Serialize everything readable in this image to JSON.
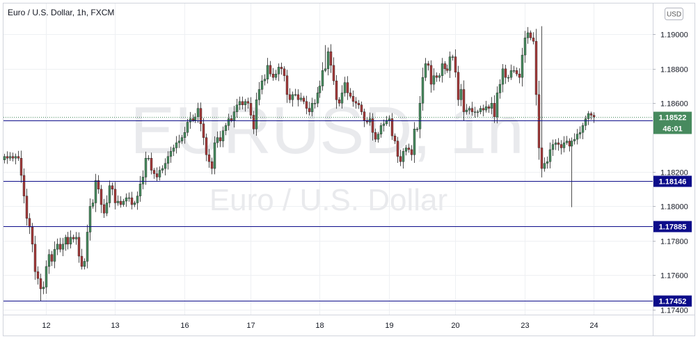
{
  "chart_data": {
    "type": "candlestick",
    "title": "Euro / U.S. Dollar, 1h, FXCM",
    "watermark_symbol": "EURUSD, 1h",
    "watermark_name": "Euro / U.S. Dollar",
    "currency_button": "USD",
    "ylim": [
      1.1737,
      1.1918
    ],
    "y_ticks": [
      1.19,
      1.188,
      1.186,
      1.182,
      1.18,
      1.178,
      1.176,
      1.174
    ],
    "y_tick_labels": [
      "1.19000",
      "1.18800",
      "1.18600",
      "1.18200",
      "1.18000",
      "1.17800",
      "1.17600",
      "1.17400"
    ],
    "x_ticks": [
      {
        "label": "12",
        "bar": 15
      },
      {
        "label": "13",
        "bar": 40
      },
      {
        "label": "16",
        "bar": 65
      },
      {
        "label": "17",
        "bar": 89
      },
      {
        "label": "18",
        "bar": 114
      },
      {
        "label": "19",
        "bar": 139
      },
      {
        "label": "20",
        "bar": 163
      },
      {
        "label": "23",
        "bar": 188
      },
      {
        "label": "24",
        "bar": 213
      }
    ],
    "horizontal_lines": [
      {
        "value": 1.185,
        "label": "1.18500"
      },
      {
        "value": 1.18146,
        "label": "1.18146"
      },
      {
        "value": 1.17885,
        "label": "1.17885"
      },
      {
        "value": 1.17452,
        "label": "1.17452"
      }
    ],
    "last_price": {
      "value": 1.18522,
      "label": "1.18522",
      "countdown": "46:01"
    },
    "colors": {
      "up": "#478a5e",
      "down": "#a33a3a",
      "wick": "#4d4d4d",
      "line": "#0c0c8a",
      "tag": "#0c0c8a",
      "last": "#478a5e"
    },
    "close_values": [
      1.1829,
      1.1828,
      1.1829,
      1.1828,
      1.1829,
      1.1828,
      1.1818,
      1.1806,
      1.1793,
      1.1788,
      1.1778,
      1.1762,
      1.1758,
      1.1752,
      1.1753,
      1.1765,
      1.1772,
      1.1768,
      1.1775,
      1.1778,
      1.1775,
      1.1778,
      1.1782,
      1.1778,
      1.1782,
      1.1781,
      1.1782,
      1.1771,
      1.1765,
      1.1768,
      1.1785,
      1.18,
      1.1802,
      1.1815,
      1.181,
      1.1801,
      1.1796,
      1.1802,
      1.1812,
      1.181,
      1.1802,
      1.1803,
      1.1801,
      1.1803,
      1.1805,
      1.1805,
      1.1801,
      1.1802,
      1.1806,
      1.1813,
      1.1817,
      1.1828,
      1.1828,
      1.1821,
      1.1819,
      1.1817,
      1.1821,
      1.1822,
      1.1825,
      1.1829,
      1.1832,
      1.1834,
      1.1837,
      1.1838,
      1.184,
      1.1843,
      1.1849,
      1.1851,
      1.185,
      1.1852,
      1.1857,
      1.1848,
      1.184,
      1.183,
      1.1826,
      1.1822,
      1.1837,
      1.184,
      1.1838,
      1.1844,
      1.1847,
      1.1851,
      1.185,
      1.1855,
      1.1859,
      1.1861,
      1.1859,
      1.1861,
      1.186,
      1.1853,
      1.1845,
      1.1862,
      1.1868,
      1.1873,
      1.1874,
      1.1882,
      1.1877,
      1.1875,
      1.1877,
      1.1881,
      1.188,
      1.1876,
      1.1865,
      1.1862,
      1.1865,
      1.1865,
      1.1862,
      1.1863,
      1.1861,
      1.1857,
      1.1855,
      1.186,
      1.186,
      1.1866,
      1.187,
      1.1879,
      1.188,
      1.189,
      1.1882,
      1.1873,
      1.1862,
      1.186,
      1.1866,
      1.1872,
      1.1866,
      1.1864,
      1.1861,
      1.186,
      1.1859,
      1.1855,
      1.185,
      1.1849,
      1.1851,
      1.1843,
      1.1839,
      1.1842,
      1.1847,
      1.1848,
      1.185,
      1.1851,
      1.1841,
      1.1838,
      1.1829,
      1.1826,
      1.1832,
      1.1834,
      1.1833,
      1.183,
      1.1845,
      1.1845,
      1.186,
      1.1875,
      1.1883,
      1.1882,
      1.1871,
      1.1876,
      1.1875,
      1.1876,
      1.1883,
      1.188,
      1.1879,
      1.1887,
      1.1887,
      1.1878,
      1.1862,
      1.1868,
      1.1855,
      1.1856,
      1.1857,
      1.1855,
      1.1855,
      1.1855,
      1.1857,
      1.1856,
      1.1858,
      1.1857,
      1.186,
      1.1852,
      1.1866,
      1.1871,
      1.188,
      1.1875,
      1.1875,
      1.1879,
      1.1879,
      1.1877,
      1.1875,
      1.1888,
      1.1898,
      1.1901,
      1.1898,
      1.1896,
      1.1865,
      1.1834,
      1.1822,
      1.1825,
      1.1826,
      1.1833,
      1.1836,
      1.1837,
      1.1836,
      1.1834,
      1.1837,
      1.1838,
      1.1835,
      1.1838,
      1.1839,
      1.1842,
      1.1843,
      1.1847,
      1.1851,
      1.1854,
      1.1853,
      1.1852
    ]
  }
}
